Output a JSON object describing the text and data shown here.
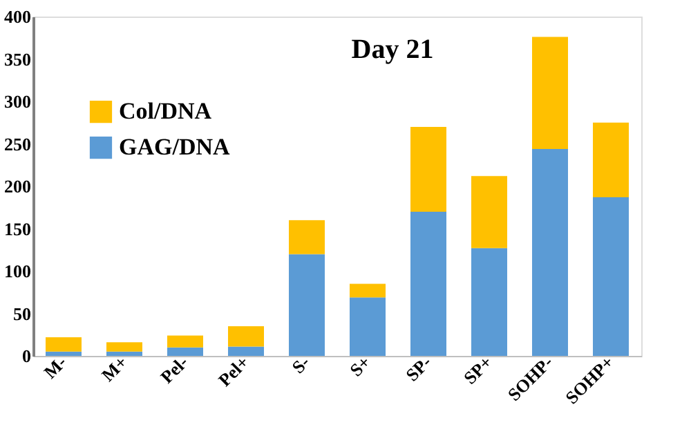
{
  "chart_data": {
    "type": "bar",
    "title": "Day 21",
    "stacked": true,
    "categories": [
      "M-",
      "M+",
      "Pel-",
      "Pel+",
      "S-",
      "S+",
      "SP-",
      "SP+",
      "SOHP-",
      "SOHP+"
    ],
    "series": [
      {
        "name": "GAG/DNA",
        "color": "#5b9bd5",
        "values": [
          5,
          5,
          10,
          11,
          120,
          69,
          170,
          127,
          244,
          187
        ]
      },
      {
        "name": "Col/DNA",
        "color": "#ffc000",
        "values": [
          17,
          11,
          14,
          24,
          40,
          16,
          100,
          85,
          132,
          88
        ]
      }
    ],
    "ylim": [
      0,
      400
    ],
    "yticks": [
      0,
      50,
      100,
      150,
      200,
      250,
      300,
      350,
      400
    ],
    "grid": false,
    "legend": "top left"
  }
}
